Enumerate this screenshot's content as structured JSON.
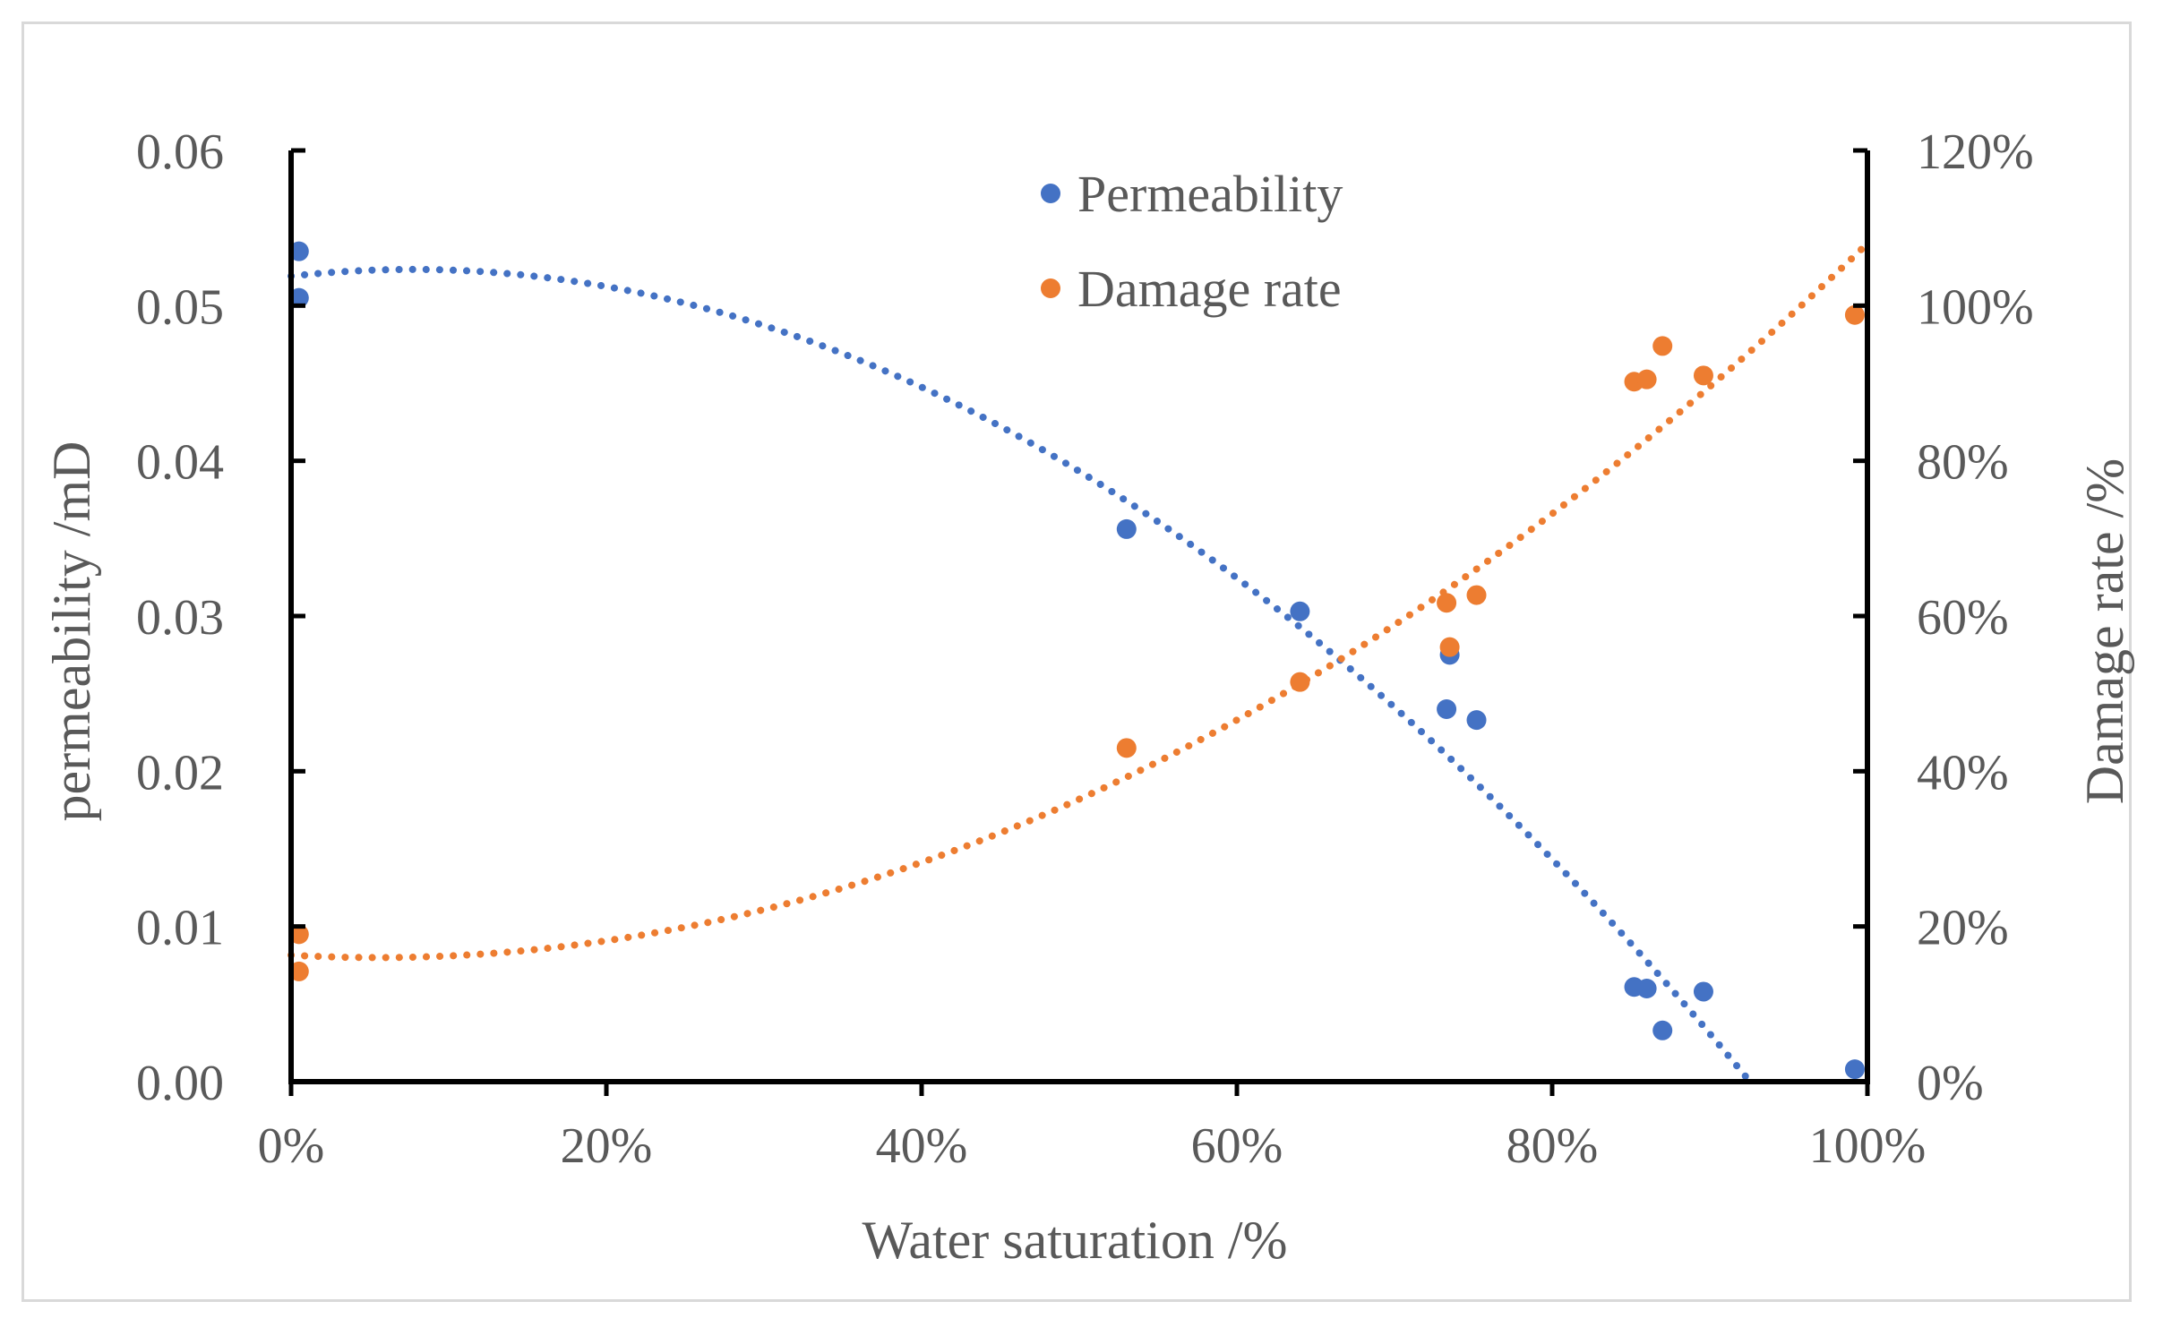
{
  "chart_data": {
    "type": "scatter",
    "xlabel": "Water saturation /%",
    "ylabel_left": "permeability /mD",
    "ylabel_right": "Damage rate /%",
    "x_ticks": [
      "0%",
      "20%",
      "40%",
      "60%",
      "80%",
      "100%"
    ],
    "y_left_ticks": [
      "0.00",
      "0.01",
      "0.02",
      "0.03",
      "0.04",
      "0.05",
      "0.06"
    ],
    "y_right_ticks": [
      "0%",
      "20%",
      "40%",
      "60%",
      "80%",
      "100%",
      "120%"
    ],
    "xlim": [
      0,
      1
    ],
    "ylim_left": [
      0,
      0.06
    ],
    "ylim_right": [
      0,
      1.2
    ],
    "legend": {
      "position": "top-center",
      "entries": [
        "Permeability",
        "Damage rate"
      ]
    },
    "series": [
      {
        "name": "Permeability",
        "axis": "left",
        "color": "#4472C4",
        "points": [
          [
            0.005,
            0.0535
          ],
          [
            0.005,
            0.0505
          ],
          [
            0.53,
            0.0356
          ],
          [
            0.64,
            0.0303
          ],
          [
            0.735,
            0.0275
          ],
          [
            0.733,
            0.024
          ],
          [
            0.752,
            0.0233
          ],
          [
            0.852,
            0.0061
          ],
          [
            0.86,
            0.006
          ],
          [
            0.87,
            0.0033
          ],
          [
            0.896,
            0.0058
          ],
          [
            0.992,
            0.0008
          ]
        ],
        "trendline": {
          "type": "polynomial",
          "coefficients": [
            0.0519,
            0.0112,
            -0.0727
          ]
        }
      },
      {
        "name": "Damage rate",
        "axis": "right",
        "color": "#ED7D31",
        "points": [
          [
            0.005,
            0.19
          ],
          [
            0.005,
            0.142
          ],
          [
            0.53,
            0.43
          ],
          [
            0.64,
            0.515
          ],
          [
            0.735,
            0.56
          ],
          [
            0.733,
            0.617
          ],
          [
            0.752,
            0.627
          ],
          [
            0.852,
            0.902
          ],
          [
            0.86,
            0.905
          ],
          [
            0.87,
            0.948
          ],
          [
            0.896,
            0.91
          ],
          [
            0.992,
            0.988
          ]
        ],
        "trendline": {
          "type": "polynomial",
          "coefficients": [
            0.163,
            -0.113,
            1.03
          ]
        }
      }
    ]
  }
}
